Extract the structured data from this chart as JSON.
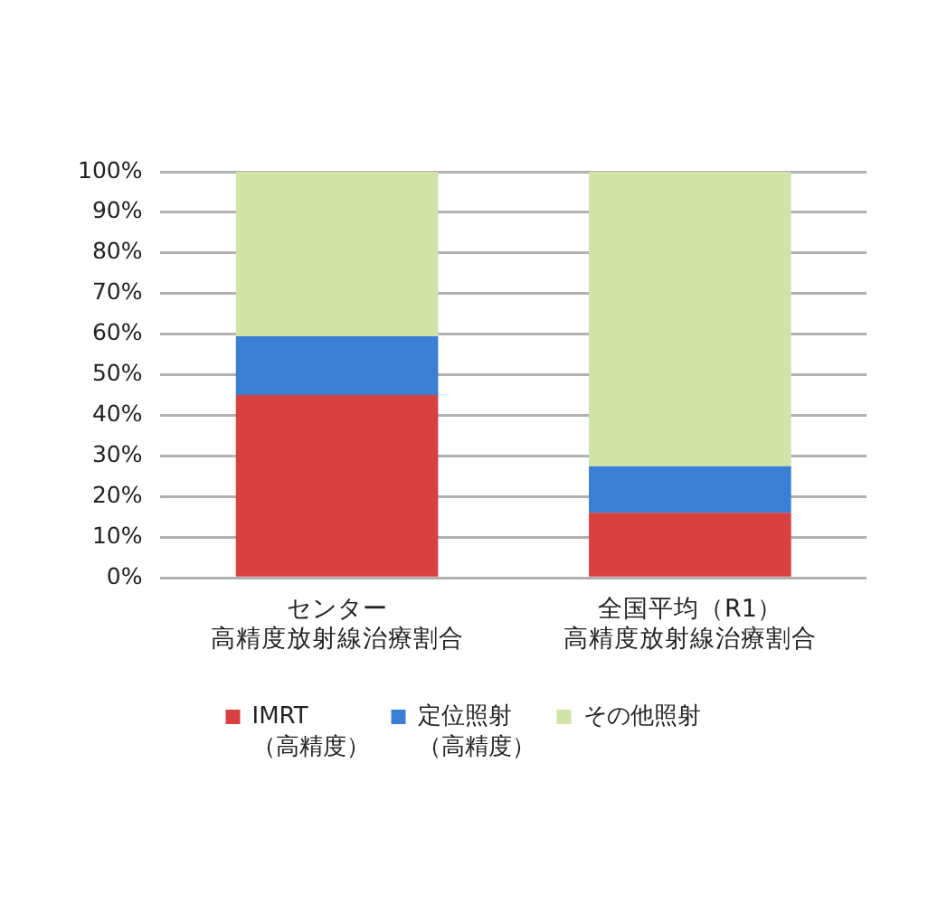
{
  "chart_data": {
    "type": "bar",
    "stacked": true,
    "categories": [
      "センター高精度放射線治療割合",
      "全国平均（R1）高精度放射線治療割合"
    ],
    "series": [
      {
        "name": "IMRT（高精度）",
        "color": "#d94141",
        "values": [
          45,
          16
        ]
      },
      {
        "name": "定位照射（高精度）",
        "color": "#3a7fd3",
        "values": [
          14.5,
          11.5
        ]
      },
      {
        "name": "その他照射",
        "color": "#d1e3a7",
        "values": [
          40.5,
          72.5
        ]
      }
    ],
    "ylim": [
      0,
      100
    ],
    "yticks": [
      {
        "value": 0,
        "label": "0%"
      },
      {
        "value": 10,
        "label": "10%"
      },
      {
        "value": 20,
        "label": "20%"
      },
      {
        "value": 30,
        "label": "30%"
      },
      {
        "value": 40,
        "label": "40%"
      },
      {
        "value": 50,
        "label": "50%"
      },
      {
        "value": 60,
        "label": "60%"
      },
      {
        "value": 70,
        "label": "70%"
      },
      {
        "value": 80,
        "label": "80%"
      },
      {
        "value": 90,
        "label": "90%"
      },
      {
        "value": 100,
        "label": "100%"
      }
    ],
    "grid": "y",
    "legend": "bottom"
  }
}
